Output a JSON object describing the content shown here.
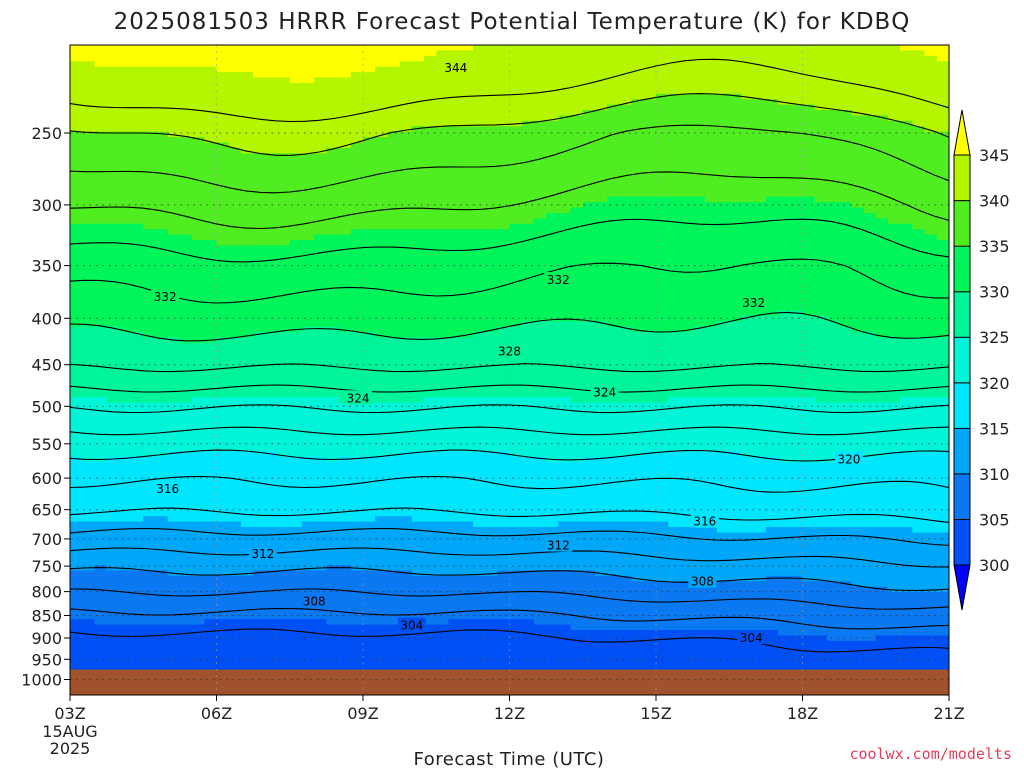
{
  "chart_data": {
    "type": "heatmap",
    "title": "2025081503 HRRR Forecast Potential Temperature (K) for KDBQ",
    "xlabel": "Forecast Time (UTC)",
    "x_ticks": [
      "03Z",
      "06Z",
      "09Z",
      "12Z",
      "15Z",
      "18Z",
      "21Z"
    ],
    "x_first_tick_extra": [
      "15AUG",
      "2025"
    ],
    "x_range_hours": [
      3,
      21
    ],
    "y_ticks": [
      250,
      300,
      350,
      400,
      450,
      500,
      550,
      600,
      650,
      700,
      750,
      800,
      850,
      900,
      950,
      1000
    ],
    "y_range": [
      200,
      1040
    ],
    "y_axis": "pressure (hPa), inverted, log scale",
    "grid": true,
    "colorbar": {
      "ticks": [
        300,
        305,
        310,
        315,
        320,
        325,
        330,
        335,
        340,
        345
      ],
      "bins": [
        {
          "from": 295,
          "to": 300,
          "color": "#0000ff"
        },
        {
          "from": 300,
          "to": 305,
          "color": "#0050f5"
        },
        {
          "from": 305,
          "to": 310,
          "color": "#0a78f0"
        },
        {
          "from": 310,
          "to": 315,
          "color": "#00a6f7"
        },
        {
          "from": 315,
          "to": 320,
          "color": "#00e6ff"
        },
        {
          "from": 320,
          "to": 325,
          "color": "#00f5d8"
        },
        {
          "from": 325,
          "to": 330,
          "color": "#00f59a"
        },
        {
          "from": 330,
          "to": 335,
          "color": "#00f55a"
        },
        {
          "from": 335,
          "to": 340,
          "color": "#50ee20"
        },
        {
          "from": 340,
          "to": 345,
          "color": "#b4f500"
        },
        {
          "from": 345,
          "to": 350,
          "color": "#ffff00"
        }
      ],
      "extend": "both"
    },
    "ground_color": "#a0522d",
    "ground_below_hPa": 975,
    "contour_labels": [
      {
        "value": 344,
        "hour": 10.9,
        "hPa": 212
      },
      {
        "value": 332,
        "hour": 4.95,
        "hPa": 379
      },
      {
        "value": 332,
        "hour": 13.0,
        "hPa": 363
      },
      {
        "value": 332,
        "hour": 17.0,
        "hPa": 385
      },
      {
        "value": 328,
        "hour": 12.0,
        "hPa": 435
      },
      {
        "value": 324,
        "hour": 8.9,
        "hPa": 490
      },
      {
        "value": 324,
        "hour": 13.95,
        "hPa": 483
      },
      {
        "value": 320,
        "hour": 18.95,
        "hPa": 572
      },
      {
        "value": 316,
        "hour": 5.0,
        "hPa": 617
      },
      {
        "value": 316,
        "hour": 16.0,
        "hPa": 670
      },
      {
        "value": 312,
        "hour": 6.95,
        "hPa": 727
      },
      {
        "value": 312,
        "hour": 13.0,
        "hPa": 712
      },
      {
        "value": 308,
        "hour": 8.0,
        "hPa": 820
      },
      {
        "value": 308,
        "hour": 15.95,
        "hPa": 780
      },
      {
        "value": 304,
        "hour": 10.0,
        "hPa": 872
      },
      {
        "value": 304,
        "hour": 16.95,
        "hPa": 900
      }
    ],
    "credit": "coolwx.com/modelts"
  }
}
